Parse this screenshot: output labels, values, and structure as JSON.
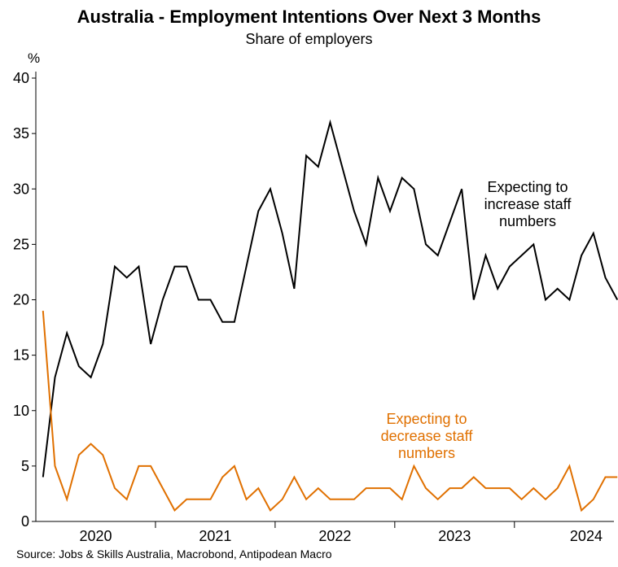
{
  "chart_data": {
    "type": "line",
    "title": "Australia - Employment Intentions Over Next 3 Months",
    "subtitle": "Share of employers",
    "ylabel": "%",
    "source": "Source: Jobs & Skills Australia, Macrobond, Antipodean Macro",
    "ylim": [
      0,
      40
    ],
    "yticks": [
      0,
      5,
      10,
      15,
      20,
      25,
      30,
      35,
      40
    ],
    "xlim": [
      2019.5,
      2024.25
    ],
    "x_year_labels": [
      {
        "label": "2020",
        "center": 2020.0
      },
      {
        "label": "2021",
        "center": 2021.0
      },
      {
        "label": "2022",
        "center": 2022.0
      },
      {
        "label": "2023",
        "center": 2023.0
      },
      {
        "label": "2024",
        "center": 2024.1
      }
    ],
    "x_year_boundaries": [
      2020.5,
      2021.5,
      2022.5,
      2023.5
    ],
    "grid": false,
    "legend": "none",
    "series": [
      {
        "label_lines": [
          "Expecting to",
          "increase staff",
          "numbers"
        ],
        "color": "#000000",
        "points": [
          [
            2019.56,
            4
          ],
          [
            2019.66,
            13
          ],
          [
            2019.76,
            17
          ],
          [
            2019.86,
            14
          ],
          [
            2019.96,
            13
          ],
          [
            2020.06,
            16
          ],
          [
            2020.16,
            23
          ],
          [
            2020.26,
            22
          ],
          [
            2020.36,
            23
          ],
          [
            2020.46,
            16
          ],
          [
            2020.56,
            20
          ],
          [
            2020.66,
            23
          ],
          [
            2020.76,
            23
          ],
          [
            2020.86,
            20
          ],
          [
            2020.96,
            20
          ],
          [
            2021.06,
            18
          ],
          [
            2021.16,
            18
          ],
          [
            2021.26,
            23
          ],
          [
            2021.36,
            28
          ],
          [
            2021.46,
            30
          ],
          [
            2021.56,
            26
          ],
          [
            2021.66,
            21
          ],
          [
            2021.76,
            33
          ],
          [
            2021.86,
            32
          ],
          [
            2021.96,
            36
          ],
          [
            2022.06,
            32
          ],
          [
            2022.16,
            28
          ],
          [
            2022.26,
            25
          ],
          [
            2022.36,
            31
          ],
          [
            2022.46,
            28
          ],
          [
            2022.56,
            31
          ],
          [
            2022.66,
            30
          ],
          [
            2022.76,
            25
          ],
          [
            2022.86,
            24
          ],
          [
            2022.96,
            27
          ],
          [
            2023.06,
            30
          ],
          [
            2023.16,
            20
          ],
          [
            2023.26,
            24
          ],
          [
            2023.36,
            21
          ],
          [
            2023.46,
            23
          ],
          [
            2023.56,
            24
          ],
          [
            2023.66,
            25
          ],
          [
            2023.76,
            20
          ],
          [
            2023.86,
            21
          ],
          [
            2023.96,
            20
          ],
          [
            2024.06,
            24
          ],
          [
            2024.16,
            26
          ],
          [
            2024.26,
            22
          ],
          [
            2024.36,
            20
          ]
        ]
      },
      {
        "label_lines": [
          "Expecting to",
          "decrease staff",
          "numbers"
        ],
        "color": "#E07000",
        "points": [
          [
            2019.56,
            19
          ],
          [
            2019.66,
            5
          ],
          [
            2019.76,
            2
          ],
          [
            2019.86,
            6
          ],
          [
            2019.96,
            7
          ],
          [
            2020.06,
            6
          ],
          [
            2020.16,
            3
          ],
          [
            2020.26,
            2
          ],
          [
            2020.36,
            5
          ],
          [
            2020.46,
            5
          ],
          [
            2020.56,
            3
          ],
          [
            2020.66,
            1
          ],
          [
            2020.76,
            2
          ],
          [
            2020.86,
            2
          ],
          [
            2020.96,
            2
          ],
          [
            2021.06,
            4
          ],
          [
            2021.16,
            5
          ],
          [
            2021.26,
            2
          ],
          [
            2021.36,
            3
          ],
          [
            2021.46,
            1
          ],
          [
            2021.56,
            2
          ],
          [
            2021.66,
            4
          ],
          [
            2021.76,
            2
          ],
          [
            2021.86,
            3
          ],
          [
            2021.96,
            2
          ],
          [
            2022.06,
            2
          ],
          [
            2022.16,
            2
          ],
          [
            2022.26,
            3
          ],
          [
            2022.36,
            3
          ],
          [
            2022.46,
            3
          ],
          [
            2022.56,
            2
          ],
          [
            2022.66,
            5
          ],
          [
            2022.76,
            3
          ],
          [
            2022.86,
            2
          ],
          [
            2022.96,
            3
          ],
          [
            2023.06,
            3
          ],
          [
            2023.16,
            4
          ],
          [
            2023.26,
            3
          ],
          [
            2023.36,
            3
          ],
          [
            2023.46,
            3
          ],
          [
            2023.56,
            2
          ],
          [
            2023.66,
            3
          ],
          [
            2023.76,
            2
          ],
          [
            2023.86,
            3
          ],
          [
            2023.96,
            5
          ],
          [
            2024.06,
            1
          ],
          [
            2024.16,
            2
          ],
          [
            2024.26,
            4
          ],
          [
            2024.36,
            4
          ]
        ]
      }
    ]
  }
}
